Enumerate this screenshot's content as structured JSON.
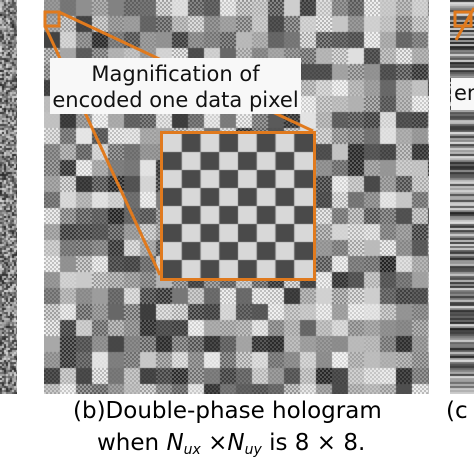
{
  "magnification_callout": {
    "line1": "Magnification of",
    "line2": "encoded one data pixel"
  },
  "panel_c_label": "en",
  "captions": {
    "b_line1": "(b)Double-phase hologram",
    "b_line2_prefix": "when",
    "b_var1": "N",
    "b_var1_sub": "ux",
    "b_times": "×",
    "b_var2": "N",
    "b_var2_sub": "uy",
    "b_line2_suffix": "is 8 × 8.",
    "c_line1": "(c"
  },
  "colors": {
    "callout_orange": "#e07a1e",
    "checker_dark": "#4a4a4a",
    "checker_light": "#d8d8d8"
  }
}
